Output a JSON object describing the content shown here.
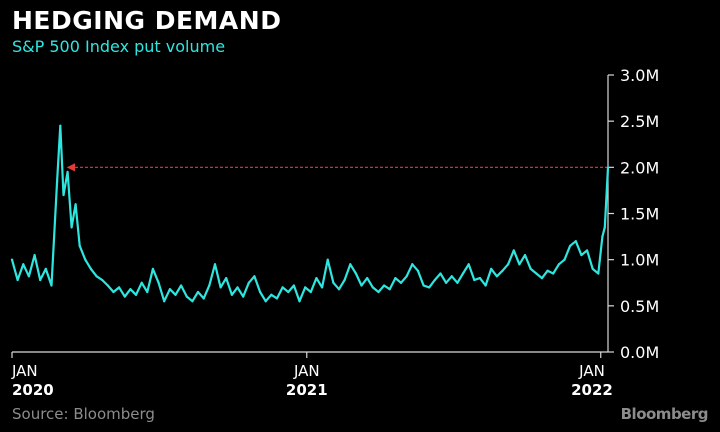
{
  "header": {
    "title": "HEDGING DEMAND",
    "subtitle": "S&P 500 Index put volume"
  },
  "footer": {
    "source": "Source: Bloomberg",
    "brand": "Bloomberg"
  },
  "colors": {
    "background": "#000000",
    "series": "#2ee6e0",
    "reference_arrow": "#e23b3b",
    "axis": "#d9d9d9",
    "text": "#ffffff",
    "muted": "#8c8c8c"
  },
  "chart_data": {
    "type": "line",
    "title": "HEDGING DEMAND",
    "subtitle": "S&P 500 Index put volume",
    "xlabel": "",
    "ylabel": "",
    "ylim": [
      0,
      3.0
    ],
    "y_ticks": [
      {
        "value": 0.0,
        "label": "0.0M"
      },
      {
        "value": 0.5,
        "label": "0.5M"
      },
      {
        "value": 1.0,
        "label": "1.0M"
      },
      {
        "value": 1.5,
        "label": "1.5M"
      },
      {
        "value": 2.0,
        "label": "2.0M"
      },
      {
        "value": 2.5,
        "label": "2.5M"
      },
      {
        "value": 3.0,
        "label": "3.0M"
      }
    ],
    "xlim": [
      "2020-01-01",
      "2022-01-10"
    ],
    "x_ticks": [
      {
        "value": "2020-01-01",
        "label_top": "JAN",
        "label_bottom": "2020"
      },
      {
        "value": "2021-01-01",
        "label_top": "JAN",
        "label_bottom": "2021"
      },
      {
        "value": "2022-01-01",
        "label_top": "JAN",
        "label_bottom": "2022"
      }
    ],
    "y_axis_position": "right",
    "grid": false,
    "legend": "none",
    "unit": "millions of contracts",
    "annotation": {
      "type": "dashed-arrow",
      "y": 2.0,
      "x_from": "2022-01-10",
      "x_to": "2020-03-10"
    },
    "series": [
      {
        "points": [
          [
            "2020-01-01",
            1.0
          ],
          [
            "2020-01-08",
            0.78
          ],
          [
            "2020-01-15",
            0.95
          ],
          [
            "2020-01-22",
            0.82
          ],
          [
            "2020-01-29",
            1.05
          ],
          [
            "2020-02-05",
            0.78
          ],
          [
            "2020-02-12",
            0.9
          ],
          [
            "2020-02-19",
            0.72
          ],
          [
            "2020-02-26",
            1.85
          ],
          [
            "2020-03-01",
            2.45
          ],
          [
            "2020-03-05",
            1.7
          ],
          [
            "2020-03-10",
            1.95
          ],
          [
            "2020-03-15",
            1.35
          ],
          [
            "2020-03-20",
            1.6
          ],
          [
            "2020-03-25",
            1.15
          ],
          [
            "2020-04-01",
            1.0
          ],
          [
            "2020-04-08",
            0.9
          ],
          [
            "2020-04-15",
            0.82
          ],
          [
            "2020-04-22",
            0.78
          ],
          [
            "2020-04-29",
            0.72
          ],
          [
            "2020-05-06",
            0.65
          ],
          [
            "2020-05-13",
            0.7
          ],
          [
            "2020-05-20",
            0.6
          ],
          [
            "2020-05-27",
            0.68
          ],
          [
            "2020-06-03",
            0.62
          ],
          [
            "2020-06-10",
            0.75
          ],
          [
            "2020-06-17",
            0.65
          ],
          [
            "2020-06-24",
            0.9
          ],
          [
            "2020-07-01",
            0.75
          ],
          [
            "2020-07-08",
            0.55
          ],
          [
            "2020-07-15",
            0.68
          ],
          [
            "2020-07-22",
            0.62
          ],
          [
            "2020-07-29",
            0.72
          ],
          [
            "2020-08-05",
            0.6
          ],
          [
            "2020-08-12",
            0.55
          ],
          [
            "2020-08-19",
            0.65
          ],
          [
            "2020-08-26",
            0.58
          ],
          [
            "2020-09-02",
            0.72
          ],
          [
            "2020-09-09",
            0.95
          ],
          [
            "2020-09-16",
            0.7
          ],
          [
            "2020-09-23",
            0.8
          ],
          [
            "2020-09-30",
            0.62
          ],
          [
            "2020-10-07",
            0.7
          ],
          [
            "2020-10-14",
            0.6
          ],
          [
            "2020-10-21",
            0.75
          ],
          [
            "2020-10-28",
            0.82
          ],
          [
            "2020-11-04",
            0.65
          ],
          [
            "2020-11-11",
            0.55
          ],
          [
            "2020-11-18",
            0.62
          ],
          [
            "2020-11-25",
            0.58
          ],
          [
            "2020-12-02",
            0.7
          ],
          [
            "2020-12-09",
            0.65
          ],
          [
            "2020-12-16",
            0.72
          ],
          [
            "2020-12-23",
            0.55
          ],
          [
            "2020-12-30",
            0.7
          ],
          [
            "2021-01-06",
            0.65
          ],
          [
            "2021-01-13",
            0.8
          ],
          [
            "2021-01-20",
            0.7
          ],
          [
            "2021-01-27",
            1.0
          ],
          [
            "2021-02-03",
            0.75
          ],
          [
            "2021-02-10",
            0.68
          ],
          [
            "2021-02-17",
            0.78
          ],
          [
            "2021-02-24",
            0.95
          ],
          [
            "2021-03-03",
            0.85
          ],
          [
            "2021-03-10",
            0.72
          ],
          [
            "2021-03-17",
            0.8
          ],
          [
            "2021-03-24",
            0.7
          ],
          [
            "2021-03-31",
            0.65
          ],
          [
            "2021-04-07",
            0.72
          ],
          [
            "2021-04-14",
            0.68
          ],
          [
            "2021-04-21",
            0.8
          ],
          [
            "2021-04-28",
            0.75
          ],
          [
            "2021-05-05",
            0.82
          ],
          [
            "2021-05-12",
            0.95
          ],
          [
            "2021-05-19",
            0.88
          ],
          [
            "2021-05-26",
            0.72
          ],
          [
            "2021-06-02",
            0.7
          ],
          [
            "2021-06-09",
            0.78
          ],
          [
            "2021-06-16",
            0.85
          ],
          [
            "2021-06-23",
            0.75
          ],
          [
            "2021-06-30",
            0.82
          ],
          [
            "2021-07-07",
            0.75
          ],
          [
            "2021-07-14",
            0.85
          ],
          [
            "2021-07-21",
            0.95
          ],
          [
            "2021-07-28",
            0.78
          ],
          [
            "2021-08-04",
            0.8
          ],
          [
            "2021-08-11",
            0.72
          ],
          [
            "2021-08-18",
            0.9
          ],
          [
            "2021-08-25",
            0.82
          ],
          [
            "2021-09-01",
            0.88
          ],
          [
            "2021-09-08",
            0.95
          ],
          [
            "2021-09-15",
            1.1
          ],
          [
            "2021-09-22",
            0.95
          ],
          [
            "2021-09-29",
            1.05
          ],
          [
            "2021-10-06",
            0.9
          ],
          [
            "2021-10-13",
            0.85
          ],
          [
            "2021-10-20",
            0.8
          ],
          [
            "2021-10-27",
            0.88
          ],
          [
            "2021-11-03",
            0.85
          ],
          [
            "2021-11-10",
            0.95
          ],
          [
            "2021-11-17",
            1.0
          ],
          [
            "2021-11-24",
            1.15
          ],
          [
            "2021-12-01",
            1.2
          ],
          [
            "2021-12-08",
            1.05
          ],
          [
            "2021-12-15",
            1.1
          ],
          [
            "2021-12-22",
            0.9
          ],
          [
            "2021-12-29",
            0.85
          ],
          [
            "2022-01-03",
            1.25
          ],
          [
            "2022-01-06",
            1.35
          ],
          [
            "2022-01-10",
            2.0
          ]
        ]
      }
    ]
  }
}
